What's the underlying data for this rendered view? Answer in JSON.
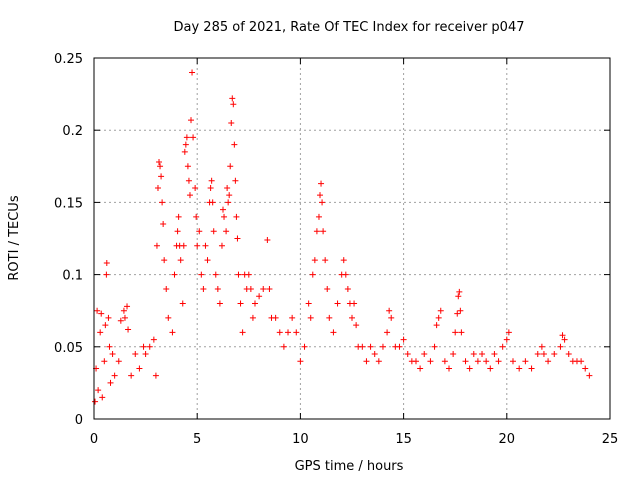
{
  "chart_data": {
    "type": "scatter",
    "title": "Day 285 of 2021, Rate Of TEC Index for receiver p047",
    "xlabel": "GPS time / hours",
    "ylabel": "ROTI / TECUs",
    "xlim": [
      0,
      25
    ],
    "ylim": [
      0,
      0.25
    ],
    "x_ticks": [
      "0",
      "5",
      "10",
      "15",
      "20",
      "25"
    ],
    "y_ticks": [
      "0",
      "0.05",
      "0.1",
      "0.15",
      "0.2",
      "0.25"
    ],
    "grid": true,
    "marker": "+",
    "color": "#ff0000",
    "series": [
      {
        "name": "ROTI",
        "points": [
          [
            0.05,
            0.012
          ],
          [
            0.1,
            0.035
          ],
          [
            0.15,
            0.075
          ],
          [
            0.2,
            0.02
          ],
          [
            0.3,
            0.06
          ],
          [
            0.35,
            0.073
          ],
          [
            0.4,
            0.015
          ],
          [
            0.5,
            0.04
          ],
          [
            0.55,
            0.065
          ],
          [
            0.6,
            0.1
          ],
          [
            0.62,
            0.108
          ],
          [
            0.7,
            0.07
          ],
          [
            0.75,
            0.05
          ],
          [
            0.8,
            0.025
          ],
          [
            0.9,
            0.045
          ],
          [
            1.0,
            0.03
          ],
          [
            1.2,
            0.04
          ],
          [
            1.3,
            0.068
          ],
          [
            1.45,
            0.075
          ],
          [
            1.5,
            0.07
          ],
          [
            1.6,
            0.078
          ],
          [
            1.65,
            0.062
          ],
          [
            1.8,
            0.03
          ],
          [
            2.0,
            0.045
          ],
          [
            2.2,
            0.035
          ],
          [
            2.4,
            0.05
          ],
          [
            2.5,
            0.045
          ],
          [
            2.7,
            0.05
          ],
          [
            2.9,
            0.055
          ],
          [
            3.0,
            0.03
          ],
          [
            3.05,
            0.12
          ],
          [
            3.1,
            0.16
          ],
          [
            3.15,
            0.178
          ],
          [
            3.2,
            0.175
          ],
          [
            3.25,
            0.168
          ],
          [
            3.3,
            0.15
          ],
          [
            3.35,
            0.135
          ],
          [
            3.4,
            0.11
          ],
          [
            3.5,
            0.09
          ],
          [
            3.6,
            0.07
          ],
          [
            3.8,
            0.06
          ],
          [
            3.9,
            0.1
          ],
          [
            4.0,
            0.12
          ],
          [
            4.05,
            0.13
          ],
          [
            4.1,
            0.14
          ],
          [
            4.15,
            0.12
          ],
          [
            4.2,
            0.11
          ],
          [
            4.3,
            0.08
          ],
          [
            4.35,
            0.12
          ],
          [
            4.4,
            0.185
          ],
          [
            4.45,
            0.19
          ],
          [
            4.5,
            0.195
          ],
          [
            4.55,
            0.175
          ],
          [
            4.6,
            0.165
          ],
          [
            4.65,
            0.155
          ],
          [
            4.7,
            0.207
          ],
          [
            4.75,
            0.24
          ],
          [
            4.8,
            0.195
          ],
          [
            4.9,
            0.16
          ],
          [
            4.95,
            0.14
          ],
          [
            5.0,
            0.12
          ],
          [
            5.1,
            0.13
          ],
          [
            5.2,
            0.1
          ],
          [
            5.3,
            0.09
          ],
          [
            5.4,
            0.12
          ],
          [
            5.5,
            0.11
          ],
          [
            5.6,
            0.15
          ],
          [
            5.65,
            0.16
          ],
          [
            5.7,
            0.165
          ],
          [
            5.75,
            0.15
          ],
          [
            5.8,
            0.13
          ],
          [
            5.9,
            0.1
          ],
          [
            6.0,
            0.09
          ],
          [
            6.1,
            0.08
          ],
          [
            6.2,
            0.12
          ],
          [
            6.25,
            0.145
          ],
          [
            6.3,
            0.14
          ],
          [
            6.4,
            0.13
          ],
          [
            6.45,
            0.16
          ],
          [
            6.5,
            0.15
          ],
          [
            6.55,
            0.155
          ],
          [
            6.6,
            0.175
          ],
          [
            6.65,
            0.205
          ],
          [
            6.7,
            0.222
          ],
          [
            6.75,
            0.218
          ],
          [
            6.8,
            0.19
          ],
          [
            6.85,
            0.165
          ],
          [
            6.9,
            0.14
          ],
          [
            6.95,
            0.125
          ],
          [
            7.0,
            0.1
          ],
          [
            7.1,
            0.08
          ],
          [
            7.2,
            0.06
          ],
          [
            7.3,
            0.1
          ],
          [
            7.4,
            0.09
          ],
          [
            7.5,
            0.1
          ],
          [
            7.6,
            0.09
          ],
          [
            7.7,
            0.07
          ],
          [
            7.8,
            0.08
          ],
          [
            8.0,
            0.085
          ],
          [
            8.2,
            0.09
          ],
          [
            8.4,
            0.124
          ],
          [
            8.5,
            0.09
          ],
          [
            8.6,
            0.07
          ],
          [
            8.8,
            0.07
          ],
          [
            9.0,
            0.06
          ],
          [
            9.2,
            0.05
          ],
          [
            9.4,
            0.06
          ],
          [
            9.6,
            0.07
          ],
          [
            9.8,
            0.06
          ],
          [
            10.0,
            0.04
          ],
          [
            10.2,
            0.05
          ],
          [
            10.4,
            0.08
          ],
          [
            10.5,
            0.07
          ],
          [
            10.6,
            0.1
          ],
          [
            10.7,
            0.11
          ],
          [
            10.8,
            0.13
          ],
          [
            10.9,
            0.14
          ],
          [
            10.95,
            0.155
          ],
          [
            11.0,
            0.163
          ],
          [
            11.05,
            0.15
          ],
          [
            11.1,
            0.13
          ],
          [
            11.2,
            0.11
          ],
          [
            11.3,
            0.09
          ],
          [
            11.4,
            0.07
          ],
          [
            11.6,
            0.06
          ],
          [
            11.8,
            0.08
          ],
          [
            12.0,
            0.1
          ],
          [
            12.1,
            0.11
          ],
          [
            12.2,
            0.1
          ],
          [
            12.3,
            0.09
          ],
          [
            12.4,
            0.08
          ],
          [
            12.5,
            0.07
          ],
          [
            12.6,
            0.08
          ],
          [
            12.7,
            0.065
          ],
          [
            12.8,
            0.05
          ],
          [
            13.0,
            0.05
          ],
          [
            13.2,
            0.04
          ],
          [
            13.4,
            0.05
          ],
          [
            13.6,
            0.045
          ],
          [
            13.8,
            0.04
          ],
          [
            14.0,
            0.05
          ],
          [
            14.2,
            0.06
          ],
          [
            14.3,
            0.075
          ],
          [
            14.4,
            0.07
          ],
          [
            14.6,
            0.05
          ],
          [
            14.8,
            0.05
          ],
          [
            15.0,
            0.055
          ],
          [
            15.2,
            0.045
          ],
          [
            15.4,
            0.04
          ],
          [
            15.6,
            0.04
          ],
          [
            15.8,
            0.035
          ],
          [
            16.0,
            0.045
          ],
          [
            16.3,
            0.04
          ],
          [
            16.5,
            0.05
          ],
          [
            16.6,
            0.065
          ],
          [
            16.7,
            0.07
          ],
          [
            16.8,
            0.075
          ],
          [
            17.0,
            0.04
          ],
          [
            17.2,
            0.035
          ],
          [
            17.4,
            0.045
          ],
          [
            17.5,
            0.06
          ],
          [
            17.6,
            0.073
          ],
          [
            17.65,
            0.085
          ],
          [
            17.7,
            0.088
          ],
          [
            17.75,
            0.075
          ],
          [
            17.8,
            0.06
          ],
          [
            18.0,
            0.04
          ],
          [
            18.2,
            0.035
          ],
          [
            18.4,
            0.045
          ],
          [
            18.6,
            0.04
          ],
          [
            18.8,
            0.045
          ],
          [
            19.0,
            0.04
          ],
          [
            19.2,
            0.035
          ],
          [
            19.4,
            0.045
          ],
          [
            19.6,
            0.04
          ],
          [
            19.8,
            0.05
          ],
          [
            20.0,
            0.055
          ],
          [
            20.1,
            0.06
          ],
          [
            20.3,
            0.04
          ],
          [
            20.6,
            0.035
          ],
          [
            20.9,
            0.04
          ],
          [
            21.2,
            0.035
          ],
          [
            21.5,
            0.045
          ],
          [
            21.7,
            0.05
          ],
          [
            21.8,
            0.045
          ],
          [
            22.0,
            0.04
          ],
          [
            22.3,
            0.045
          ],
          [
            22.6,
            0.05
          ],
          [
            22.7,
            0.058
          ],
          [
            22.8,
            0.055
          ],
          [
            23.0,
            0.045
          ],
          [
            23.2,
            0.04
          ],
          [
            23.4,
            0.04
          ],
          [
            23.6,
            0.04
          ],
          [
            23.8,
            0.035
          ],
          [
            24.0,
            0.03
          ]
        ]
      }
    ]
  }
}
